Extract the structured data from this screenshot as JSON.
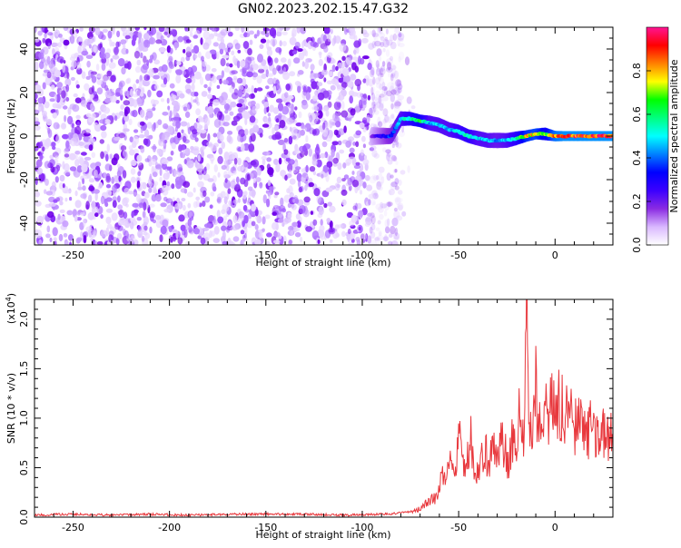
{
  "chart_data": [
    {
      "type": "heatmap",
      "title": "GN02.2023.202.15.47.G32",
      "xlabel": "Height of straight line (km)",
      "ylabel": "Frequency (Hz)",
      "xlim": [
        -270,
        30
      ],
      "ylim": [
        -50,
        50
      ],
      "x_ticks": [
        -250,
        -200,
        -150,
        -100,
        -50,
        0
      ],
      "y_ticks": [
        -40,
        -20,
        0,
        20,
        40
      ],
      "colorbar": {
        "label": "Normalized spectral amplitude",
        "range": [
          0.0,
          1.0
        ],
        "ticks": [
          0.0,
          0.2,
          0.4,
          0.6,
          0.8
        ],
        "colors": [
          "#ffffff",
          "#d9b8ff",
          "#8a2be2",
          "#3b00ff",
          "#0000ff",
          "#0080ff",
          "#00ffff",
          "#00ff80",
          "#00ff00",
          "#ffff00",
          "#ff8000",
          "#ff0000",
          "#ff1493"
        ]
      },
      "noise_region": {
        "x": [
          -270,
          -80
        ],
        "y": [
          -50,
          50
        ],
        "amplitude": 0.1
      },
      "signal_trace": {
        "x": [
          -95,
          -85,
          -80,
          -75,
          -70,
          -65,
          -60,
          -55,
          -50,
          -45,
          -40,
          -35,
          -30,
          -25,
          -20,
          -15,
          -10,
          -5,
          0,
          5,
          10,
          15,
          20,
          25,
          30
        ],
        "freq": [
          0,
          0,
          8,
          8,
          7,
          6,
          5,
          3,
          2,
          0,
          -1,
          -2,
          -2,
          -2,
          -1,
          0,
          1,
          1,
          0,
          0,
          0,
          0,
          0,
          0,
          0
        ],
        "amplitude": [
          0.2,
          0.4,
          0.5,
          0.6,
          0.7,
          0.5,
          0.5,
          0.5,
          0.55,
          0.6,
          0.5,
          0.5,
          0.45,
          0.5,
          0.6,
          0.8,
          0.85,
          0.7,
          0.9,
          0.95,
          0.95,
          0.95,
          0.95,
          0.95,
          0.95
        ]
      }
    },
    {
      "type": "line",
      "xlabel": "Height of straight line (km)",
      "ylabel": "SNR (10 * v/v)",
      "y_exponent_label": "(x10",
      "y_exponent_power": "4",
      "y_exponent_close": ")",
      "xlim": [
        -270,
        30
      ],
      "ylim": [
        0,
        2.2
      ],
      "x_ticks": [
        -250,
        -200,
        -150,
        -100,
        -50,
        0
      ],
      "y_ticks": [
        "0.0",
        "0.5",
        "1.0",
        "1.5",
        "2.0"
      ],
      "y_tick_values": [
        0,
        0.5,
        1.0,
        1.5,
        2.0
      ],
      "line_color": "#e8383d",
      "series": [
        {
          "x": [
            -270,
            -250,
            -230,
            -210,
            -190,
            -170,
            -150,
            -130,
            -110,
            -90,
            -80,
            -75,
            -70,
            -66,
            -62,
            -60,
            -58,
            -55,
            -52,
            -50,
            -48,
            -46,
            -44,
            -42,
            -40,
            -38,
            -36,
            -34,
            -32,
            -30,
            -28,
            -26,
            -24,
            -22,
            -20,
            -18,
            -16,
            -15,
            -14,
            -13,
            -12,
            -10,
            -8,
            -6,
            -4,
            -2,
            0,
            2,
            4,
            6,
            8,
            10,
            12,
            15,
            18,
            21,
            24,
            27,
            30
          ],
          "y": [
            0.02,
            0.03,
            0.02,
            0.03,
            0.02,
            0.03,
            0.03,
            0.03,
            0.02,
            0.03,
            0.04,
            0.06,
            0.08,
            0.15,
            0.2,
            0.3,
            0.45,
            0.55,
            0.35,
            0.9,
            0.5,
            0.45,
            0.85,
            0.4,
            0.5,
            0.6,
            0.7,
            0.45,
            0.9,
            0.55,
            0.75,
            0.65,
            0.5,
            0.85,
            0.7,
            1.1,
            0.9,
            2.2,
            1.5,
            1.0,
            0.8,
            1.3,
            0.9,
            1.2,
            0.95,
            1.1,
            1.0,
            1.15,
            1.05,
            1.1,
            1.0,
            0.95,
            0.95,
            0.9,
            0.88,
            0.85,
            0.82,
            0.8,
            0.78
          ]
        }
      ]
    }
  ]
}
